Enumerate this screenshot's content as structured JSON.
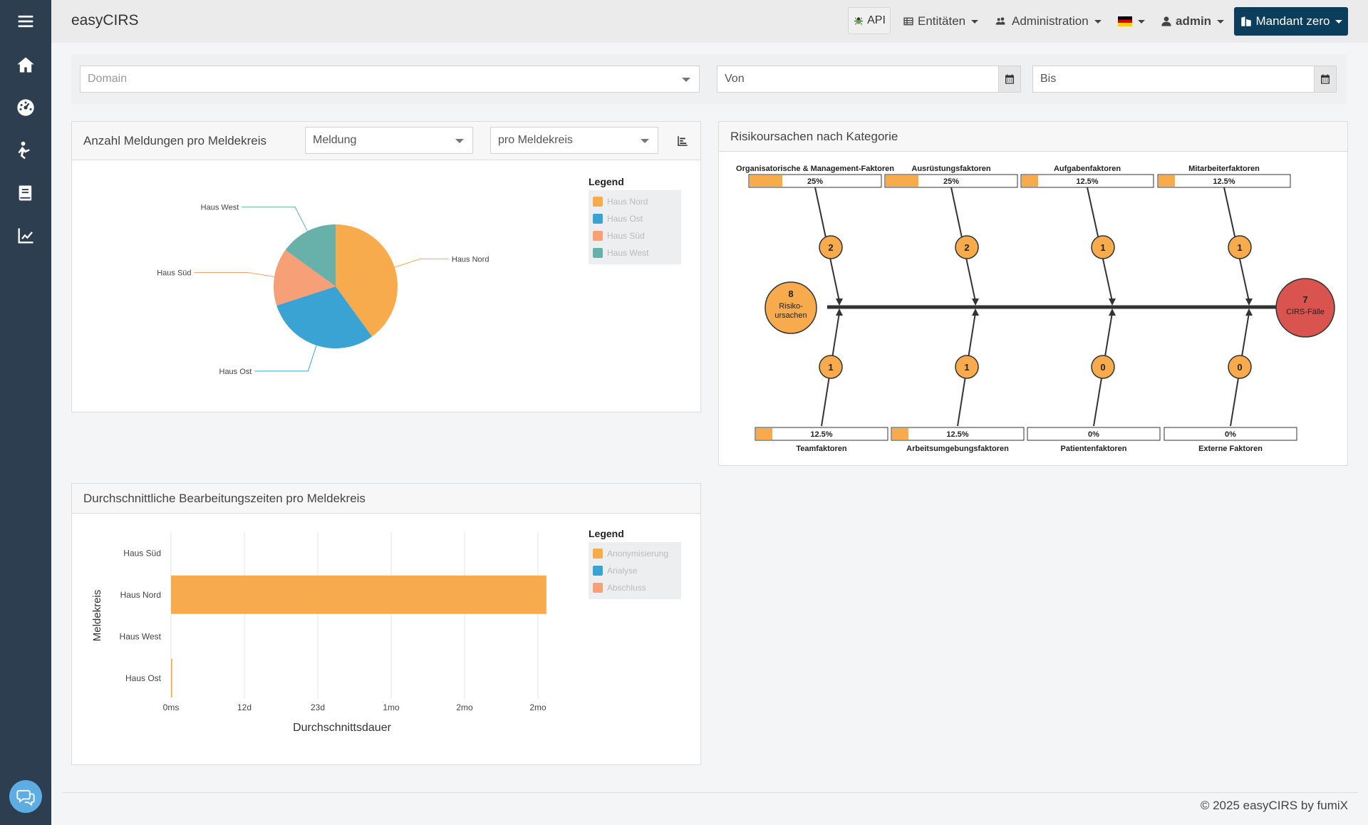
{
  "app": {
    "brand": "easyCIRS"
  },
  "topbar": {
    "api_label": "API",
    "entitaeten_label": "Entitäten",
    "administration_label": "Administration",
    "language_flag": "🇩🇪",
    "user_label": "admin",
    "mandant_label": "Mandant zero"
  },
  "filters": {
    "domain_placeholder": "Domain",
    "von_placeholder": "Von",
    "bis_placeholder": "Bis"
  },
  "pie_card": {
    "title": "Anzahl Meldungen pro Meldekreis",
    "select1": "Meldung",
    "select2": "pro Meldekreis",
    "legend_title": "Legend"
  },
  "fishbone_card": {
    "title": "Risikoursachen nach Kategorie",
    "left_count": "8",
    "left_label1": "Risiko-",
    "left_label2": "ursachen",
    "right_count": "7",
    "right_label": "CIRS-Fälle",
    "top_categories": [
      {
        "name": "Organisatorische & Management-Faktoren",
        "percent": "25%",
        "count": "2",
        "fill": 0.25
      },
      {
        "name": "Ausrüstungsfaktoren",
        "percent": "25%",
        "count": "2",
        "fill": 0.25
      },
      {
        "name": "Aufgabenfaktoren",
        "percent": "12.5%",
        "count": "1",
        "fill": 0.125
      },
      {
        "name": "Mitarbeiterfaktoren",
        "percent": "12.5%",
        "count": "1",
        "fill": 0.125
      }
    ],
    "bottom_categories": [
      {
        "name": "Teamfaktoren",
        "percent": "12.5%",
        "count": "1",
        "fill": 0.125
      },
      {
        "name": "Arbeitsumgebungsfaktoren",
        "percent": "12.5%",
        "count": "1",
        "fill": 0.125
      },
      {
        "name": "Patientenfaktoren",
        "percent": "0%",
        "count": "0",
        "fill": 0
      },
      {
        "name": "Externe Faktoren",
        "percent": "0%",
        "count": "0",
        "fill": 0
      }
    ]
  },
  "bar_card": {
    "title": "Durchschnittliche Bearbeitungszeiten pro Meldekreis",
    "legend_title": "Legend"
  },
  "colors": {
    "orange": "#f8ab4c",
    "blue": "#3aa3d4",
    "salmon": "#f79f76",
    "teal": "#68b0aa",
    "red": "#d9534f"
  },
  "footer": {
    "text": "© 2025 easyCIRS by fumiX"
  },
  "chart_data": [
    {
      "type": "pie",
      "categories": [
        "Haus Nord",
        "Haus Ost",
        "Haus Süd",
        "Haus West"
      ],
      "values": [
        40,
        30,
        15,
        15
      ],
      "colors": [
        "#f8ab4c",
        "#3aa3d4",
        "#f79f76",
        "#68b0aa"
      ],
      "legend": [
        "Haus Nord",
        "Haus Ost",
        "Haus Süd",
        "Haus West"
      ],
      "legend_position": "top-right"
    },
    {
      "type": "bar",
      "orientation": "horizontal",
      "categories": [
        "Haus Süd",
        "Haus Nord",
        "Haus West",
        "Haus Ost"
      ],
      "series": [
        {
          "name": "Anonymisierung",
          "color": "#f8ab4c",
          "values": [
            0,
            61,
            0,
            0.2
          ]
        },
        {
          "name": "Analyse",
          "color": "#3aa3d4",
          "values": [
            0,
            0,
            0,
            0
          ]
        },
        {
          "name": "Abschluss",
          "color": "#f79f76",
          "values": [
            0,
            0,
            0,
            0
          ]
        }
      ],
      "xlabel": "Durchschnittsdauer",
      "ylabel": "Meldekreis",
      "x_ticks": [
        "0ms",
        "12d",
        "23d",
        "1mo",
        "2mo",
        "2mo"
      ],
      "xlim": [
        0,
        66
      ],
      "x_unit": "days",
      "grid": true,
      "legend_position": "top-right"
    }
  ]
}
